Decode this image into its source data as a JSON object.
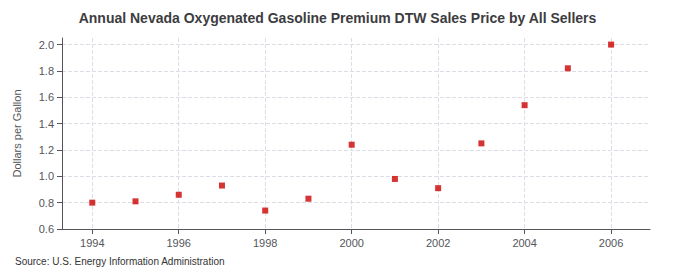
{
  "chart_data": {
    "type": "scatter",
    "title": "Annual Nevada Oxygenated Gasoline Premium DTW Sales Price by All Sellers",
    "ylabel": "Dollars per Gallon",
    "source": "Source: U.S. Energy Information Administration",
    "x": [
      1994,
      1995,
      1996,
      1997,
      1998,
      1999,
      2000,
      2001,
      2002,
      2003,
      2004,
      2005,
      2006
    ],
    "values": [
      0.8,
      0.81,
      0.86,
      0.93,
      0.74,
      0.83,
      1.24,
      0.98,
      0.91,
      1.25,
      1.54,
      1.82,
      2.0
    ],
    "color": "#cc0000",
    "marker": "square",
    "xlim": [
      1993.3,
      2006.9
    ],
    "xticks": [
      1994,
      1996,
      1998,
      2000,
      2002,
      2004,
      2006
    ],
    "ylim": [
      0.6,
      2.05
    ],
    "yticks": [
      0.6,
      0.8,
      {
        "value": 1.0,
        "label": "1.0"
      },
      1.2,
      1.4,
      1.6,
      1.8,
      {
        "value": 2.0,
        "label": "2.0"
      }
    ],
    "grid": true
  }
}
